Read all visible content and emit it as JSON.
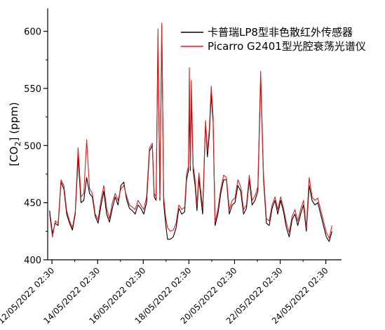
{
  "chart_data": {
    "type": "line",
    "title": "",
    "ylabel": "[CO2] (ppm)",
    "ylabel_parts": {
      "pre": "[CO",
      "sub": "2",
      "post": "] (ppm)"
    },
    "xlabel": "",
    "ylim": [
      400,
      620
    ],
    "yticks": [
      400,
      450,
      500,
      550,
      600
    ],
    "xlim": [
      "2022-05-11 22:00",
      "2022-05-24 19:00"
    ],
    "xtick_labels": [
      "12/05/2022 02:30",
      "14/05/2022 02:30",
      "16/05/2022 02:30",
      "18/05/2022 02:30",
      "20/05/2022 02:30",
      "22/05/2022 02:30",
      "24/05/2022 02:30"
    ],
    "legend": "top-right",
    "grid": false,
    "series": [
      {
        "name": "卡普瑞LP8型非色散红外传感器",
        "color": "#000000",
        "points": [
          [
            "2022-05-12 00:00",
            443
          ],
          [
            "2022-05-12 03:00",
            423
          ],
          [
            "2022-05-12 06:00",
            432
          ],
          [
            "2022-05-12 09:00",
            430
          ],
          [
            "2022-05-12 12:00",
            468
          ],
          [
            "2022-05-12 15:00",
            462
          ],
          [
            "2022-05-12 18:00",
            440
          ],
          [
            "2022-05-12 21:00",
            432
          ],
          [
            "2022-05-13 00:00",
            426
          ],
          [
            "2022-05-13 03:00",
            440
          ],
          [
            "2022-05-13 06:00",
            490
          ],
          [
            "2022-05-13 09:00",
            450
          ],
          [
            "2022-05-13 12:00",
            452
          ],
          [
            "2022-05-13 15:00",
            472
          ],
          [
            "2022-05-13 18:00",
            458
          ],
          [
            "2022-05-13 21:00",
            455
          ],
          [
            "2022-05-14 00:00",
            438
          ],
          [
            "2022-05-14 03:00",
            432
          ],
          [
            "2022-05-14 06:00",
            447
          ],
          [
            "2022-05-14 09:00",
            460
          ],
          [
            "2022-05-14 12:00",
            440
          ],
          [
            "2022-05-14 15:00",
            433
          ],
          [
            "2022-05-14 18:00",
            445
          ],
          [
            "2022-05-14 21:00",
            455
          ],
          [
            "2022-05-15 00:00",
            448
          ],
          [
            "2022-05-15 03:00",
            465
          ],
          [
            "2022-05-15 06:00",
            468
          ],
          [
            "2022-05-15 09:00",
            453
          ],
          [
            "2022-05-15 12:00",
            445
          ],
          [
            "2022-05-15 15:00",
            443
          ],
          [
            "2022-05-15 18:00",
            440
          ],
          [
            "2022-05-15 21:00",
            448
          ],
          [
            "2022-05-16 00:00",
            445
          ],
          [
            "2022-05-16 03:00",
            440
          ],
          [
            "2022-05-16 06:00",
            450
          ],
          [
            "2022-05-16 09:00",
            495
          ],
          [
            "2022-05-16 12:00",
            500
          ],
          [
            "2022-05-16 14:00",
            455
          ],
          [
            "2022-05-16 16:00",
            452
          ],
          [
            "2022-05-16 18:00",
            595
          ],
          [
            "2022-05-16 20:00",
            452
          ],
          [
            "2022-05-16 22:00",
            605
          ],
          [
            "2022-05-17 00:00",
            450
          ],
          [
            "2022-05-17 02:00",
            432
          ],
          [
            "2022-05-17 04:00",
            418
          ],
          [
            "2022-05-17 07:00",
            418
          ],
          [
            "2022-05-17 10:00",
            420
          ],
          [
            "2022-05-17 13:00",
            428
          ],
          [
            "2022-05-17 16:00",
            445
          ],
          [
            "2022-05-17 19:00",
            440
          ],
          [
            "2022-05-17 22:00",
            442
          ],
          [
            "2022-05-18 00:00",
            470
          ],
          [
            "2022-05-18 02:00",
            478
          ],
          [
            "2022-05-18 03:00",
            540
          ],
          [
            "2022-05-18 04:00",
            478
          ],
          [
            "2022-05-18 05:00",
            545
          ],
          [
            "2022-05-18 07:00",
            478
          ],
          [
            "2022-05-18 09:00",
            465
          ],
          [
            "2022-05-18 11:00",
            443
          ],
          [
            "2022-05-18 13:00",
            472
          ],
          [
            "2022-05-18 15:00",
            455
          ],
          [
            "2022-05-18 17:00",
            440
          ],
          [
            "2022-05-18 20:00",
            520
          ],
          [
            "2022-05-18 22:00",
            490
          ],
          [
            "2022-05-19 00:00",
            510
          ],
          [
            "2022-05-19 02:00",
            545
          ],
          [
            "2022-05-19 04:00",
            520
          ],
          [
            "2022-05-19 06:00",
            430
          ],
          [
            "2022-05-19 09:00",
            440
          ],
          [
            "2022-05-19 12:00",
            458
          ],
          [
            "2022-05-19 15:00",
            470
          ],
          [
            "2022-05-19 18:00",
            470
          ],
          [
            "2022-05-19 21:00",
            440
          ],
          [
            "2022-05-20 00:00",
            448
          ],
          [
            "2022-05-20 03:00",
            450
          ],
          [
            "2022-05-20 06:00",
            465
          ],
          [
            "2022-05-20 09:00",
            460
          ],
          [
            "2022-05-20 12:00",
            440
          ],
          [
            "2022-05-20 15:00",
            445
          ],
          [
            "2022-05-20 18:00",
            470
          ],
          [
            "2022-05-20 21:00",
            448
          ],
          [
            "2022-05-21 00:00",
            452
          ],
          [
            "2022-05-21 03:00",
            460
          ],
          [
            "2022-05-21 06:00",
            560
          ],
          [
            "2022-05-21 09:00",
            470
          ],
          [
            "2022-05-21 12:00",
            432
          ],
          [
            "2022-05-21 15:00",
            430
          ],
          [
            "2022-05-21 18:00",
            445
          ],
          [
            "2022-05-21 21:00",
            452
          ],
          [
            "2022-05-22 00:00",
            440
          ],
          [
            "2022-05-22 03:00",
            452
          ],
          [
            "2022-05-22 06:00",
            442
          ],
          [
            "2022-05-22 09:00",
            428
          ],
          [
            "2022-05-22 12:00",
            420
          ],
          [
            "2022-05-22 15:00",
            435
          ],
          [
            "2022-05-22 18:00",
            440
          ],
          [
            "2022-05-22 21:00",
            430
          ],
          [
            "2022-05-23 00:00",
            440
          ],
          [
            "2022-05-23 03:00",
            448
          ],
          [
            "2022-05-23 06:00",
            425
          ],
          [
            "2022-05-23 09:00",
            465
          ],
          [
            "2022-05-23 12:00",
            452
          ],
          [
            "2022-05-23 15:00",
            448
          ],
          [
            "2022-05-23 18:00",
            450
          ],
          [
            "2022-05-23 21:00",
            440
          ],
          [
            "2022-05-24 00:00",
            430
          ],
          [
            "2022-05-24 03:00",
            420
          ],
          [
            "2022-05-24 06:00",
            416
          ],
          [
            "2022-05-24 09:00",
            425
          ]
        ]
      },
      {
        "name": "Picarro G2401型光腔衰荡光谱仪",
        "color": "#d62020",
        "points": [
          [
            "2022-05-12 00:00",
            440
          ],
          [
            "2022-05-12 03:00",
            420
          ],
          [
            "2022-05-12 06:00",
            434
          ],
          [
            "2022-05-12 09:00",
            432
          ],
          [
            "2022-05-12 12:00",
            470
          ],
          [
            "2022-05-12 15:00",
            465
          ],
          [
            "2022-05-12 18:00",
            443
          ],
          [
            "2022-05-12 21:00",
            434
          ],
          [
            "2022-05-13 00:00",
            428
          ],
          [
            "2022-05-13 03:00",
            442
          ],
          [
            "2022-05-13 06:00",
            498
          ],
          [
            "2022-05-13 09:00",
            455
          ],
          [
            "2022-05-13 12:00",
            458
          ],
          [
            "2022-05-13 15:00",
            505
          ],
          [
            "2022-05-13 18:00",
            462
          ],
          [
            "2022-05-13 21:00",
            458
          ],
          [
            "2022-05-14 00:00",
            440
          ],
          [
            "2022-05-14 03:00",
            435
          ],
          [
            "2022-05-14 06:00",
            452
          ],
          [
            "2022-05-14 09:00",
            465
          ],
          [
            "2022-05-14 12:00",
            445
          ],
          [
            "2022-05-14 15:00",
            436
          ],
          [
            "2022-05-14 18:00",
            450
          ],
          [
            "2022-05-14 21:00",
            458
          ],
          [
            "2022-05-15 00:00",
            452
          ],
          [
            "2022-05-15 03:00",
            462
          ],
          [
            "2022-05-15 06:00",
            465
          ],
          [
            "2022-05-15 09:00",
            456
          ],
          [
            "2022-05-15 12:00",
            448
          ],
          [
            "2022-05-15 15:00",
            446
          ],
          [
            "2022-05-15 18:00",
            444
          ],
          [
            "2022-05-15 21:00",
            452
          ],
          [
            "2022-05-16 00:00",
            448
          ],
          [
            "2022-05-16 03:00",
            444
          ],
          [
            "2022-05-16 06:00",
            455
          ],
          [
            "2022-05-16 09:00",
            498
          ],
          [
            "2022-05-16 12:00",
            502
          ],
          [
            "2022-05-16 14:00",
            458
          ],
          [
            "2022-05-16 16:00",
            455
          ],
          [
            "2022-05-16 18:00",
            602
          ],
          [
            "2022-05-16 20:00",
            455
          ],
          [
            "2022-05-16 22:00",
            607
          ],
          [
            "2022-05-17 00:00",
            455
          ],
          [
            "2022-05-17 02:00",
            438
          ],
          [
            "2022-05-17 04:00",
            428
          ],
          [
            "2022-05-17 07:00",
            425
          ],
          [
            "2022-05-17 10:00",
            426
          ],
          [
            "2022-05-17 13:00",
            432
          ],
          [
            "2022-05-17 16:00",
            448
          ],
          [
            "2022-05-17 19:00",
            444
          ],
          [
            "2022-05-17 22:00",
            446
          ],
          [
            "2022-05-18 00:00",
            475
          ],
          [
            "2022-05-18 02:00",
            482
          ],
          [
            "2022-05-18 03:00",
            568
          ],
          [
            "2022-05-18 04:00",
            482
          ],
          [
            "2022-05-18 05:00",
            557
          ],
          [
            "2022-05-18 07:00",
            482
          ],
          [
            "2022-05-18 09:00",
            470
          ],
          [
            "2022-05-18 11:00",
            448
          ],
          [
            "2022-05-18 13:00",
            476
          ],
          [
            "2022-05-18 15:00",
            460
          ],
          [
            "2022-05-18 17:00",
            445
          ],
          [
            "2022-05-18 20:00",
            522
          ],
          [
            "2022-05-18 22:00",
            495
          ],
          [
            "2022-05-19 00:00",
            515
          ],
          [
            "2022-05-19 02:00",
            552
          ],
          [
            "2022-05-19 04:00",
            525
          ],
          [
            "2022-05-19 06:00",
            433
          ],
          [
            "2022-05-19 09:00",
            444
          ],
          [
            "2022-05-19 12:00",
            462
          ],
          [
            "2022-05-19 15:00",
            474
          ],
          [
            "2022-05-19 18:00",
            472
          ],
          [
            "2022-05-19 21:00",
            444
          ],
          [
            "2022-05-20 00:00",
            452
          ],
          [
            "2022-05-20 03:00",
            454
          ],
          [
            "2022-05-20 06:00",
            470
          ],
          [
            "2022-05-20 09:00",
            464
          ],
          [
            "2022-05-20 12:00",
            444
          ],
          [
            "2022-05-20 15:00",
            448
          ],
          [
            "2022-05-20 18:00",
            474
          ],
          [
            "2022-05-20 21:00",
            452
          ],
          [
            "2022-05-21 00:00",
            456
          ],
          [
            "2022-05-21 03:00",
            464
          ],
          [
            "2022-05-21 06:00",
            565
          ],
          [
            "2022-05-21 09:00",
            474
          ],
          [
            "2022-05-21 12:00",
            436
          ],
          [
            "2022-05-21 15:00",
            434
          ],
          [
            "2022-05-21 18:00",
            448
          ],
          [
            "2022-05-21 21:00",
            455
          ],
          [
            "2022-05-22 00:00",
            444
          ],
          [
            "2022-05-22 03:00",
            455
          ],
          [
            "2022-05-22 06:00",
            445
          ],
          [
            "2022-05-22 09:00",
            432
          ],
          [
            "2022-05-22 12:00",
            424
          ],
          [
            "2022-05-22 15:00",
            438
          ],
          [
            "2022-05-22 18:00",
            444
          ],
          [
            "2022-05-22 21:00",
            434
          ],
          [
            "2022-05-23 00:00",
            444
          ],
          [
            "2022-05-23 03:00",
            452
          ],
          [
            "2022-05-23 06:00",
            428
          ],
          [
            "2022-05-23 09:00",
            472
          ],
          [
            "2022-05-23 12:00",
            455
          ],
          [
            "2022-05-23 15:00",
            452
          ],
          [
            "2022-05-23 18:00",
            454
          ],
          [
            "2022-05-23 21:00",
            444
          ],
          [
            "2022-05-24 00:00",
            434
          ],
          [
            "2022-05-24 03:00",
            424
          ],
          [
            "2022-05-24 06:00",
            419
          ],
          [
            "2022-05-24 09:00",
            430
          ]
        ]
      }
    ]
  }
}
